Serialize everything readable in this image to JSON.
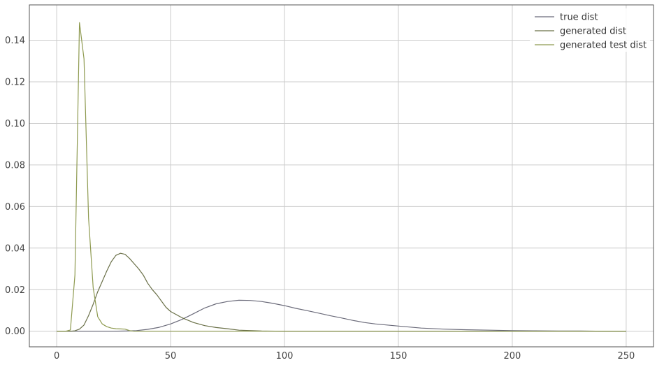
{
  "chart_data": {
    "type": "line",
    "title": "",
    "xlabel": "",
    "ylabel": "",
    "xlim": [
      -12,
      262
    ],
    "ylim": [
      -0.0075,
      0.157
    ],
    "xticks": [
      0,
      50,
      100,
      150,
      200,
      250
    ],
    "yticks": [
      0.0,
      0.02,
      0.04,
      0.06,
      0.08,
      0.1,
      0.12,
      0.14
    ],
    "ytick_labels": [
      "0.00",
      "0.02",
      "0.04",
      "0.06",
      "0.08",
      "0.10",
      "0.12",
      "0.14"
    ],
    "grid": true,
    "legend_position": "top-right",
    "series": [
      {
        "name": "true dist",
        "color": "#6b6b7a",
        "x": [
          0,
          5,
          10,
          15,
          20,
          25,
          30,
          35,
          40,
          45,
          50,
          55,
          60,
          65,
          70,
          75,
          80,
          85,
          90,
          95,
          100,
          105,
          110,
          115,
          120,
          125,
          130,
          135,
          140,
          145,
          150,
          160,
          170,
          180,
          190,
          200,
          210,
          220,
          230,
          240,
          250
        ],
        "y": [
          0,
          0,
          0,
          0,
          0,
          0,
          0.0001,
          0.0003,
          0.0009,
          0.0019,
          0.0035,
          0.0057,
          0.0084,
          0.0112,
          0.0132,
          0.0143,
          0.0149,
          0.0148,
          0.0143,
          0.0134,
          0.0123,
          0.011,
          0.0099,
          0.0087,
          0.0075,
          0.0064,
          0.0052,
          0.0042,
          0.0035,
          0.003,
          0.0025,
          0.0015,
          0.001,
          0.0007,
          0.0005,
          0.0003,
          0.0002,
          0.0001,
          0.0001,
          0,
          0
        ]
      },
      {
        "name": "generated dist",
        "color": "#6a7048",
        "x": [
          0,
          4,
          6,
          8,
          10,
          12,
          14,
          16,
          18,
          20,
          22,
          24,
          26,
          28,
          30,
          32,
          34,
          36,
          38,
          40,
          42,
          44,
          46,
          48,
          50,
          55,
          60,
          65,
          70,
          75,
          80,
          90,
          100,
          125,
          150,
          200,
          250
        ],
        "y": [
          0,
          0,
          0,
          0.0002,
          0.001,
          0.003,
          0.0075,
          0.013,
          0.019,
          0.024,
          0.029,
          0.0335,
          0.0365,
          0.0375,
          0.037,
          0.035,
          0.0325,
          0.03,
          0.027,
          0.023,
          0.02,
          0.0175,
          0.0145,
          0.0115,
          0.0095,
          0.0065,
          0.0042,
          0.0027,
          0.0018,
          0.0012,
          0.0005,
          0.0001,
          0,
          0,
          0,
          0,
          0
        ]
      },
      {
        "name": "generated test dist",
        "color": "#8e9a50",
        "x": [
          0,
          4,
          6,
          8,
          10,
          12,
          14,
          16,
          18,
          20,
          22,
          24,
          26,
          28,
          30,
          32,
          34,
          40,
          50,
          100,
          150,
          200,
          250
        ],
        "y": [
          0,
          0,
          0.0006,
          0.027,
          0.1485,
          0.131,
          0.0545,
          0.021,
          0.007,
          0.0035,
          0.0022,
          0.0015,
          0.0012,
          0.0011,
          0.001,
          0.0003,
          0,
          0,
          0,
          0,
          0,
          0,
          0
        ]
      }
    ]
  }
}
